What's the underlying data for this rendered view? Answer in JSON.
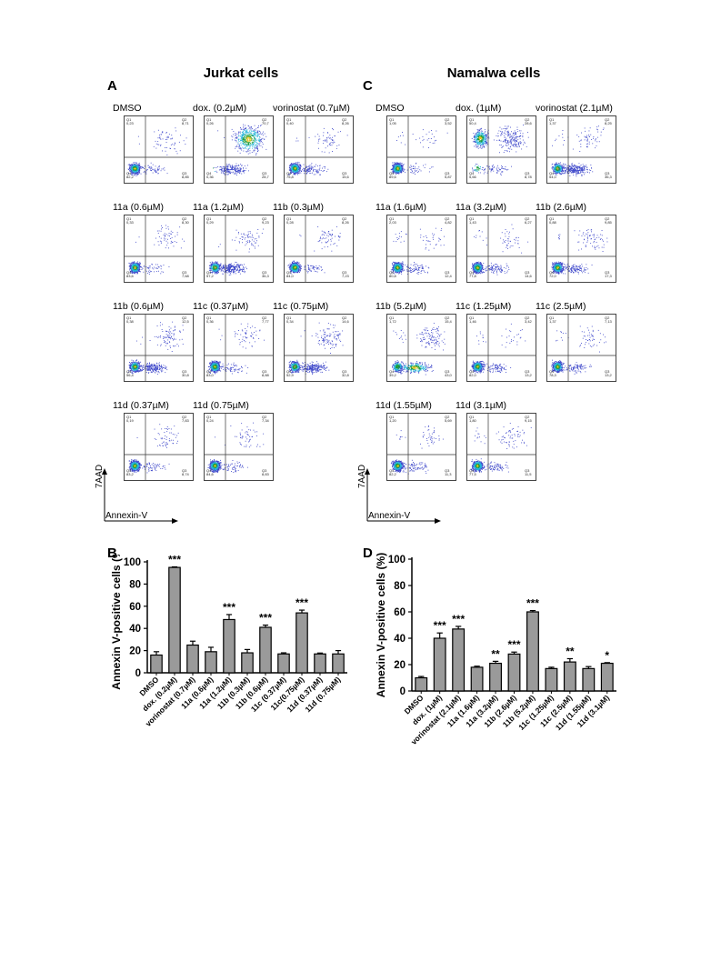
{
  "titles": {
    "left": "Jurkat cells",
    "right": "Namalwa cells"
  },
  "panel_letters": {
    "a": "A",
    "b": "B",
    "c": "C",
    "d": "D"
  },
  "flow_axes": {
    "y": "7AAD",
    "x": "Annexin-V"
  },
  "quadrant_labels": {
    "q1": "Q1",
    "q2": "Q2",
    "q3": "Q3",
    "q4": "Q4"
  },
  "jurkat_plots": [
    {
      "label": "DMSO",
      "q1": "0,23",
      "q2": "8,71",
      "q3": "8,85",
      "q4": "82,2"
    },
    {
      "label": "dox. (0.2µM)",
      "q1": "0,26",
      "q2": "70,7",
      "q3": "28,7",
      "q4": "0,36"
    },
    {
      "label": "vorinostat (0.7µM)",
      "q1": "0,40",
      "q2": "8,26",
      "q3": "15,6",
      "q4": "75,8"
    },
    {
      "label": "11a (0.6µM)",
      "q1": "0,33",
      "q2": "8,30",
      "q3": "7,68",
      "q4": "83,6"
    },
    {
      "label": "11a (1.2µM)",
      "q1": "0,29",
      "q2": "9,23",
      "q3": "36,3",
      "q4": "57,2"
    },
    {
      "label": "11b (0.3µM)",
      "q1": "0,28",
      "q2": "8,26",
      "q3": "7,23",
      "q4": "84,0"
    },
    {
      "label": "11b (0.6µM)",
      "q1": "0,38",
      "q2": "12,5",
      "q3": "30,8",
      "q4": "56,4"
    },
    {
      "label": "11c (0.37µM)",
      "q1": "0,36",
      "q2": "7,77",
      "q3": "8,88",
      "q4": "83,0"
    },
    {
      "label": "11c (0.75µM)",
      "q1": "0,34",
      "q2": "14,6",
      "q3": "32,8",
      "q4": "52,9"
    },
    {
      "label": "11d (0.37µM)",
      "q1": "0,19",
      "q2": "7,83",
      "q3": "8,74",
      "q4": "83,2"
    },
    {
      "label": "11d (0.75µM)",
      "q1": "0,24",
      "q2": "7,34",
      "q3": "8,83",
      "q4": "84,6"
    }
  ],
  "namalwa_plots": [
    {
      "label": "DMSO",
      "q1": "1,05",
      "q2": "3,52",
      "q3": "5,87",
      "q4": "89,6"
    },
    {
      "label": "dox. (1µM)",
      "q1": "50,4",
      "q2": "28,6",
      "q3": "8,78",
      "q4": "5,66"
    },
    {
      "label": "vorinostat (2.1µM)",
      "q1": "1,37",
      "q2": "8,25",
      "q3": "36,3",
      "q4": "54,0"
    },
    {
      "label": "11a (1.6µM)",
      "q1": "2,03",
      "q2": "4,82",
      "q3": "12,4",
      "q4": "80,8"
    },
    {
      "label": "11a (3.2µM)",
      "q1": "1,43",
      "q2": "6,27",
      "q3": "14,6",
      "q4": "77,8"
    },
    {
      "label": "11b (2.6µM)",
      "q1": "0,88",
      "q2": "9,85",
      "q3": "17,3",
      "q4": "72,0"
    },
    {
      "label": "11b (5.2µM)",
      "q1": "1,72",
      "q2": "15,4",
      "q3": "43,0",
      "q4": "39,2"
    },
    {
      "label": "11c (1.25µM)",
      "q1": "1,46",
      "q2": "3,42",
      "q3": "13,2",
      "q4": "82,0"
    },
    {
      "label": "11c (2.5µM)",
      "q1": "1,37",
      "q2": "7,13",
      "q3": "13,2",
      "q4": "78,3"
    },
    {
      "label": "11d (1.55µM)",
      "q1": "1,20",
      "q2": "5,69",
      "q3": "11,3",
      "q4": "82,2"
    },
    {
      "label": "11d (3.1µM)",
      "q1": "1,80",
      "q2": "9,15",
      "q3": "11,5",
      "q4": "77,5"
    }
  ],
  "chart_data": [
    {
      "type": "bar",
      "panel": "B",
      "ylabel": "Annexin V-positive cells (%)",
      "ylim": [
        0,
        100
      ],
      "yticks": [
        0,
        20,
        40,
        60,
        80,
        100
      ],
      "categories": [
        "DMSO",
        "dox. (0.2µM)",
        "vorinostat (0.7µM)",
        "11a (0.6µM)",
        "11a (1.2µM)",
        "11b (0.3µM)",
        "11b (0.6µM)",
        "11c (0.37µM)",
        "11c(0.75µM)",
        "11d (0.37µM)",
        "11d (0.75µM)"
      ],
      "values": [
        16,
        95,
        25,
        19,
        48,
        18,
        41,
        17,
        54,
        17,
        17
      ],
      "errors": [
        3,
        0.5,
        3.5,
        4,
        4.5,
        3,
        2,
        1,
        2.5,
        0.8,
        3
      ],
      "annotations": [
        "",
        "***",
        "",
        "",
        "***",
        "",
        "***",
        "",
        "***",
        "",
        ""
      ]
    },
    {
      "type": "bar",
      "panel": "D",
      "ylabel": "Annexin V-positive cells (%)",
      "ylim": [
        0,
        100
      ],
      "yticks": [
        0,
        20,
        40,
        60,
        80,
        100
      ],
      "categories": [
        "DMSO",
        "dox. (1µM)",
        "vorinostat (2.1µM)",
        "11a (1.6µM)",
        "11a (3.2µM)",
        "11b (2.6µM)",
        "11b (5.2µM)",
        "11c (1.25µM)",
        "11c (2.5µM)",
        "11d (1.55µM)",
        "11d (3.1µM)"
      ],
      "values": [
        10,
        40,
        47,
        18,
        21,
        28,
        60,
        17,
        22,
        17,
        21
      ],
      "errors": [
        1,
        4,
        2,
        0.8,
        1.5,
        1.5,
        1,
        1,
        2.5,
        1.5,
        0.5
      ],
      "annotations": [
        "",
        "***",
        "***",
        "",
        "**",
        "***",
        "***",
        "",
        "**",
        "",
        "*"
      ]
    }
  ]
}
